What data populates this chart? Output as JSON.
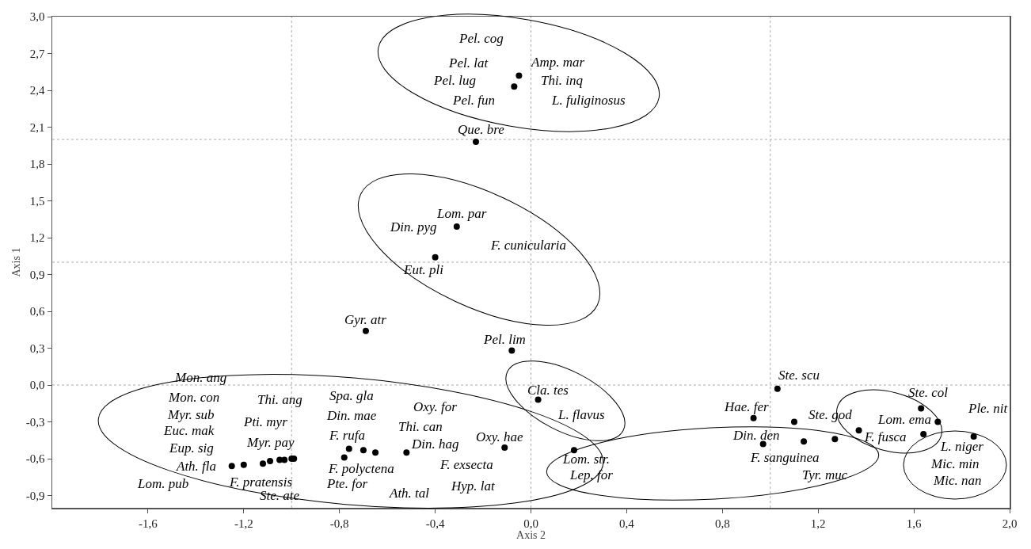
{
  "chart_data": {
    "type": "scatter",
    "xlabel": "Axis 2",
    "ylabel": "Axis 1",
    "marker": "circle",
    "grid": false,
    "xlim": [
      -2.0,
      2.0
    ],
    "xticks": [
      {
        "value": -1.6,
        "label": "-1,6"
      },
      {
        "value": -1.2,
        "label": "-1,2"
      },
      {
        "value": -0.8,
        "label": "-0,8"
      },
      {
        "value": -0.4,
        "label": "-0,4"
      },
      {
        "value": 0,
        "label": "0,0"
      },
      {
        "value": 0.4,
        "label": "0,4"
      },
      {
        "value": 0.8,
        "label": "0,8"
      },
      {
        "value": 1.2,
        "label": "1,2"
      },
      {
        "value": 1.6,
        "label": "1,6"
      },
      {
        "value": 2.0,
        "label": "2,0"
      }
    ],
    "ylim": [
      -1.0,
      3.0
    ],
    "yticks": [
      {
        "value": -0.9,
        "label": "-0,9"
      },
      {
        "value": -0.6,
        "label": "-0,6"
      },
      {
        "value": -0.3,
        "label": "-0,3"
      },
      {
        "value": 0,
        "label": "0,0"
      },
      {
        "value": 0.3,
        "label": "0,3"
      },
      {
        "value": 0.6,
        "label": "0,6"
      },
      {
        "value": 0.9,
        "label": "0,9"
      },
      {
        "value": 1.2,
        "label": "1,2"
      },
      {
        "value": 1.5,
        "label": "1,5"
      },
      {
        "value": 1.8,
        "label": "1,8"
      },
      {
        "value": 2.1,
        "label": "2,1"
      },
      {
        "value": 2.4,
        "label": "2,4"
      },
      {
        "value": 2.7,
        "label": "2,7"
      },
      {
        "value": 3.0,
        "label": "3,0"
      }
    ],
    "series": [
      {
        "color": "#000000",
        "x": [
          -0.05,
          -0.07,
          -0.23,
          -0.31,
          -0.4,
          -0.69,
          -0.08,
          0.03,
          -0.11,
          0.18,
          1.03,
          0.93,
          1.1,
          0.97,
          1.14,
          1.27,
          1.37,
          1.63,
          1.7,
          1.64,
          1.85,
          -1.25,
          -1.2,
          -1.12,
          -1.09,
          -1.05,
          -1.03,
          -1.0,
          -0.99,
          -0.78,
          -0.76,
          -0.7,
          -0.65,
          -0.52
        ],
        "values": [
          2.52,
          2.43,
          1.98,
          1.29,
          1.04,
          0.44,
          0.28,
          -0.12,
          -0.51,
          -0.53,
          -0.03,
          -0.27,
          -0.3,
          -0.48,
          -0.46,
          -0.44,
          -0.37,
          -0.19,
          -0.3,
          -0.4,
          -0.42,
          -0.66,
          -0.65,
          -0.64,
          -0.62,
          -0.61,
          -0.61,
          -0.6,
          -0.6,
          -0.59,
          -0.52,
          -0.53,
          -0.55,
          -0.55
        ]
      }
    ],
    "ref_lines": [
      {
        "axis": "x",
        "value": -1.0,
        "color": "#aaaaaa",
        "line_style": "dotted"
      },
      {
        "axis": "x",
        "value": 0.0,
        "color": "#aaaaaa",
        "line_style": "dotted"
      },
      {
        "axis": "x",
        "value": 1.0,
        "color": "#aaaaaa",
        "line_style": "dotted"
      },
      {
        "axis": "y",
        "value": 0.0,
        "color": "#aaaaaa",
        "line_style": "dotted"
      },
      {
        "axis": "y",
        "value": 1.0,
        "color": "#aaaaaa",
        "line_style": "dotted"
      },
      {
        "axis": "y",
        "value": 2.0,
        "color": "#aaaaaa",
        "line_style": "dotted"
      }
    ],
    "annotations": [
      "Pel. cog",
      "Pel. lat",
      "Amp. mar",
      "Pel. lug",
      "Thi. inq",
      "Pel. fun",
      "L. fuliginosus",
      "Que. bre",
      "Lom. par",
      "Din. pyg",
      "F. cunicularia",
      "Eut. pli",
      "Gyr. atr",
      "Pel. lim",
      "Mon. ang",
      "Mon. con",
      "Myr. sub",
      "Euc. mak",
      "Eup. sig",
      "Ath. fla",
      "Lom. pub",
      "Thi. ang",
      "Pti. myr",
      "Myr. pay",
      "F. pratensis",
      "Ste. ate",
      "Spa. gla",
      "Din. mae",
      "F. rufa",
      "F. polyctena",
      "Pte. for",
      "Oxy. for",
      "Thi. can",
      "Din. hag",
      "F. exsecta",
      "Ath. tal",
      "Hyp. lat",
      "Oxy. hae",
      "Cla. tes",
      "L. flavus",
      "Lom. str.",
      "Lep. for",
      "Ste. scu",
      "Hae. fer",
      "Ste. god",
      "Din. den",
      "F. sanguinea",
      "Tyr. muc",
      "Lom. ema",
      "F. fusca",
      "Ste. col",
      "Ple. nit",
      "L. niger",
      "Mic. min",
      "Mic. nan"
    ]
  }
}
